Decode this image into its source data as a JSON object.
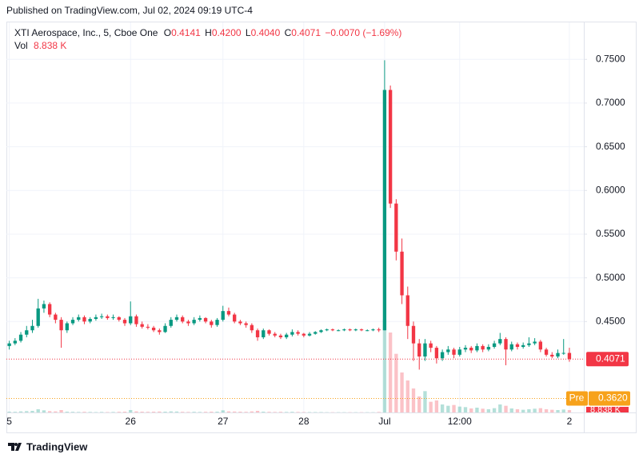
{
  "header": {
    "published": "Published on TradingView.com, Jul 02, 2024 09:19 UTC-4"
  },
  "footer": {
    "brand": "TradingView"
  },
  "chart_data": {
    "type": "candlestick",
    "symbol": "XTI Aerospace, Inc., 5, Cboe One",
    "legend": {
      "o_key": "O",
      "o": "0.4141",
      "h_key": "H",
      "h": "0.4200",
      "l_key": "L",
      "l": "0.4040",
      "c_key": "C",
      "c": "0.4071",
      "change": "−0.0070 (−1.69%)",
      "vol_key": "Vol",
      "vol": "8.838 K"
    },
    "up_color": "#089981",
    "down_color": "#f23645",
    "ylim": [
      0.346,
      0.7923
    ],
    "yticks": [
      {
        "value": 0.45,
        "label": "0.4500"
      },
      {
        "value": 0.5,
        "label": "0.5000"
      },
      {
        "value": 0.55,
        "label": "0.5500"
      },
      {
        "value": 0.6,
        "label": "0.6000"
      },
      {
        "value": 0.65,
        "label": "0.6500"
      },
      {
        "value": 0.7,
        "label": "0.7000"
      },
      {
        "value": 0.75,
        "label": "0.7500"
      }
    ],
    "grid": true,
    "last_price": 0.4071,
    "premarket": {
      "name": "Pre",
      "value": 0.362,
      "label": "0.3620",
      "color": "#f7a21b"
    },
    "vlim": [
      0,
      480000
    ],
    "categories": [
      "5",
      null,
      null,
      null,
      null,
      null,
      null,
      null,
      null,
      null,
      null,
      null,
      null,
      null,
      null,
      null,
      null,
      null,
      null,
      null,
      null,
      "26",
      null,
      null,
      null,
      null,
      null,
      null,
      null,
      null,
      null,
      null,
      null,
      null,
      null,
      null,
      null,
      "27",
      null,
      null,
      null,
      null,
      null,
      null,
      null,
      null,
      null,
      null,
      null,
      null,
      null,
      "28",
      null,
      null,
      null,
      null,
      null,
      null,
      null,
      null,
      null,
      null,
      null,
      null,
      null,
      "Jul",
      null,
      null,
      null,
      null,
      null,
      null,
      null,
      null,
      null,
      null,
      null,
      null,
      "12:00",
      null,
      null,
      null,
      null,
      null,
      null,
      null,
      null,
      null,
      null,
      null,
      null,
      null,
      null,
      null,
      null,
      null,
      null,
      "2",
      null,
      null
    ],
    "ohlc": [
      [
        0.422,
        0.428,
        0.418,
        0.425
      ],
      [
        0.425,
        0.431,
        0.423,
        0.428
      ],
      [
        0.428,
        0.438,
        0.426,
        0.435
      ],
      [
        0.435,
        0.445,
        0.432,
        0.44
      ],
      [
        0.44,
        0.452,
        0.437,
        0.445
      ],
      [
        0.445,
        0.476,
        0.443,
        0.465
      ],
      [
        0.465,
        0.474,
        0.46,
        0.47
      ],
      [
        0.47,
        0.472,
        0.455,
        0.458
      ],
      [
        0.458,
        0.46,
        0.448,
        0.452
      ],
      [
        0.452,
        0.455,
        0.42,
        0.44
      ],
      [
        0.44,
        0.45,
        0.437,
        0.448
      ],
      [
        0.448,
        0.455,
        0.446,
        0.452
      ],
      [
        0.452,
        0.458,
        0.45,
        0.455
      ],
      [
        0.455,
        0.457,
        0.447,
        0.45
      ],
      [
        0.45,
        0.455,
        0.448,
        0.453
      ],
      [
        0.453,
        0.458,
        0.451,
        0.455
      ],
      [
        0.455,
        0.459,
        0.453,
        0.456
      ],
      [
        0.456,
        0.458,
        0.452,
        0.454
      ],
      [
        0.454,
        0.458,
        0.452,
        0.455
      ],
      [
        0.455,
        0.456,
        0.45,
        0.452
      ],
      [
        0.452,
        0.454,
        0.445,
        0.448
      ],
      [
        0.448,
        0.473,
        0.446,
        0.456
      ],
      [
        0.456,
        0.458,
        0.444,
        0.447
      ],
      [
        0.447,
        0.45,
        0.442,
        0.444
      ],
      [
        0.444,
        0.447,
        0.441,
        0.443
      ],
      [
        0.443,
        0.445,
        0.438,
        0.44
      ],
      [
        0.44,
        0.442,
        0.435,
        0.438
      ],
      [
        0.438,
        0.448,
        0.437,
        0.445
      ],
      [
        0.445,
        0.455,
        0.443,
        0.452
      ],
      [
        0.452,
        0.458,
        0.45,
        0.455
      ],
      [
        0.455,
        0.457,
        0.448,
        0.45
      ],
      [
        0.45,
        0.452,
        0.445,
        0.448
      ],
      [
        0.448,
        0.455,
        0.446,
        0.452
      ],
      [
        0.452,
        0.457,
        0.45,
        0.454
      ],
      [
        0.454,
        0.455,
        0.448,
        0.45
      ],
      [
        0.45,
        0.452,
        0.443,
        0.446
      ],
      [
        0.446,
        0.454,
        0.444,
        0.452
      ],
      [
        0.452,
        0.468,
        0.45,
        0.462
      ],
      [
        0.462,
        0.466,
        0.456,
        0.458
      ],
      [
        0.458,
        0.46,
        0.448,
        0.45
      ],
      [
        0.45,
        0.452,
        0.446,
        0.448
      ],
      [
        0.448,
        0.45,
        0.443,
        0.446
      ],
      [
        0.446,
        0.448,
        0.437,
        0.44
      ],
      [
        0.44,
        0.442,
        0.428,
        0.432
      ],
      [
        0.432,
        0.442,
        0.43,
        0.44
      ],
      [
        0.44,
        0.441,
        0.434,
        0.436
      ],
      [
        0.436,
        0.438,
        0.432,
        0.434
      ],
      [
        0.434,
        0.436,
        0.43,
        0.432
      ],
      [
        0.432,
        0.437,
        0.43,
        0.435
      ],
      [
        0.435,
        0.441,
        0.433,
        0.438
      ],
      [
        0.438,
        0.44,
        0.434,
        0.436
      ],
      [
        0.436,
        0.437,
        0.432,
        0.434
      ],
      [
        0.434,
        0.438,
        0.433,
        0.436
      ],
      [
        0.436,
        0.439,
        0.435,
        0.438
      ],
      [
        0.438,
        0.441,
        0.437,
        0.44
      ],
      [
        0.44,
        0.442,
        0.439,
        0.441
      ],
      [
        0.441,
        0.442,
        0.439,
        0.44
      ],
      [
        0.44,
        0.441,
        0.439,
        0.44
      ],
      [
        0.44,
        0.442,
        0.439,
        0.441
      ],
      [
        0.441,
        0.442,
        0.439,
        0.44
      ],
      [
        0.44,
        0.442,
        0.439,
        0.441
      ],
      [
        0.441,
        0.442,
        0.439,
        0.44
      ],
      [
        0.44,
        0.441,
        0.439,
        0.44
      ],
      [
        0.44,
        0.442,
        0.439,
        0.441
      ],
      [
        0.441,
        0.443,
        0.438,
        0.44
      ],
      [
        0.44,
        0.749,
        0.44,
        0.715
      ],
      [
        0.715,
        0.72,
        0.58,
        0.585
      ],
      [
        0.585,
        0.59,
        0.52,
        0.53
      ],
      [
        0.53,
        0.545,
        0.47,
        0.48
      ],
      [
        0.48,
        0.49,
        0.43,
        0.445
      ],
      [
        0.445,
        0.45,
        0.405,
        0.425
      ],
      [
        0.425,
        0.43,
        0.395,
        0.41
      ],
      [
        0.41,
        0.43,
        0.405,
        0.425
      ],
      [
        0.425,
        0.428,
        0.415,
        0.42
      ],
      [
        0.42,
        0.422,
        0.402,
        0.408
      ],
      [
        0.408,
        0.418,
        0.405,
        0.415
      ],
      [
        0.415,
        0.422,
        0.412,
        0.418
      ],
      [
        0.418,
        0.42,
        0.408,
        0.412
      ],
      [
        0.412,
        0.421,
        0.41,
        0.418
      ],
      [
        0.418,
        0.423,
        0.415,
        0.42
      ],
      [
        0.42,
        0.422,
        0.414,
        0.417
      ],
      [
        0.417,
        0.425,
        0.415,
        0.422
      ],
      [
        0.422,
        0.424,
        0.415,
        0.418
      ],
      [
        0.418,
        0.424,
        0.416,
        0.421
      ],
      [
        0.421,
        0.428,
        0.419,
        0.425
      ],
      [
        0.425,
        0.437,
        0.423,
        0.43
      ],
      [
        0.43,
        0.432,
        0.4,
        0.418
      ],
      [
        0.418,
        0.427,
        0.416,
        0.424
      ],
      [
        0.424,
        0.426,
        0.418,
        0.421
      ],
      [
        0.421,
        0.426,
        0.419,
        0.423
      ],
      [
        0.423,
        0.432,
        0.421,
        0.425
      ],
      [
        0.425,
        0.431,
        0.423,
        0.427
      ],
      [
        0.427,
        0.429,
        0.415,
        0.418
      ],
      [
        0.418,
        0.42,
        0.41,
        0.412
      ],
      [
        0.412,
        0.415,
        0.408,
        0.41
      ],
      [
        0.41,
        0.418,
        0.408,
        0.414
      ],
      [
        0.414,
        0.43,
        0.412,
        0.4141
      ],
      [
        0.4141,
        0.42,
        0.404,
        0.4071
      ],
      null,
      null
    ],
    "volume": [
      3000,
      2500,
      4000,
      5000,
      6000,
      12000,
      8000,
      5000,
      4000,
      9000,
      3000,
      2500,
      2000,
      2500,
      2000,
      1500,
      2000,
      1500,
      2000,
      2500,
      3000,
      9000,
      4000,
      3000,
      2500,
      3000,
      3500,
      3000,
      4000,
      3500,
      2500,
      2000,
      2500,
      2000,
      2500,
      3000,
      3000,
      8000,
      4000,
      3500,
      3000,
      2500,
      4000,
      6000,
      3000,
      2500,
      2000,
      2500,
      2000,
      2500,
      2000,
      1500,
      1500,
      1500,
      1500,
      1000,
      1000,
      1000,
      1000,
      1000,
      1000,
      1000,
      1000,
      1000,
      2000,
      350000,
      300000,
      220000,
      150000,
      120000,
      90000,
      60000,
      80000,
      40000,
      45000,
      30000,
      25000,
      28000,
      22000,
      20000,
      15000,
      18000,
      14000,
      12000,
      16000,
      30000,
      25000,
      15000,
      12000,
      10000,
      12000,
      14000,
      16000,
      12000,
      10000,
      9000,
      11000,
      8838,
      null,
      null
    ]
  }
}
